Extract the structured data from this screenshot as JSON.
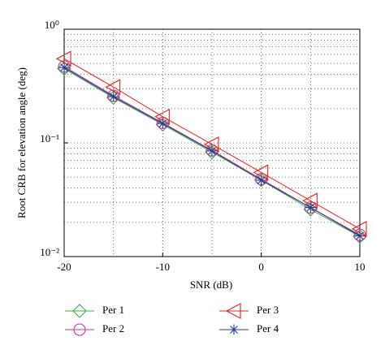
{
  "chart_data": {
    "type": "line",
    "xlabel": "SNR (dB)",
    "ylabel": "Root CRB for elevation angle (deg)",
    "x": [
      -20,
      -15,
      -10,
      -5,
      0,
      5,
      10
    ],
    "series": [
      {
        "name": "Per 1",
        "color": "#3cb043",
        "marker": "diamond",
        "values": [
          0.45,
          0.25,
          0.145,
          0.083,
          0.047,
          0.026,
          0.015
        ]
      },
      {
        "name": "Per 2",
        "color": "#c0399a",
        "marker": "circle",
        "values": [
          0.47,
          0.26,
          0.15,
          0.086,
          0.048,
          0.027,
          0.0155
        ]
      },
      {
        "name": "Per 3",
        "color": "#e8211d",
        "marker": "triangle-left",
        "values": [
          0.55,
          0.31,
          0.17,
          0.097,
          0.055,
          0.031,
          0.0175
        ]
      },
      {
        "name": "Per 4",
        "color": "#2b3a8f",
        "marker": "star",
        "values": [
          0.46,
          0.255,
          0.148,
          0.085,
          0.047,
          0.027,
          0.0152
        ]
      }
    ],
    "xlim": [
      -20,
      10
    ],
    "xticks": [
      -20,
      -10,
      0,
      10
    ],
    "ylim": [
      0.01,
      1
    ],
    "yscale": "log",
    "yticks": [
      {
        "value": 0.01,
        "label": "10⁻²"
      },
      {
        "value": 0.1,
        "label": "10⁻¹"
      },
      {
        "value": 1,
        "label": "10⁰"
      }
    ],
    "grid": true,
    "legend": "bottom"
  }
}
